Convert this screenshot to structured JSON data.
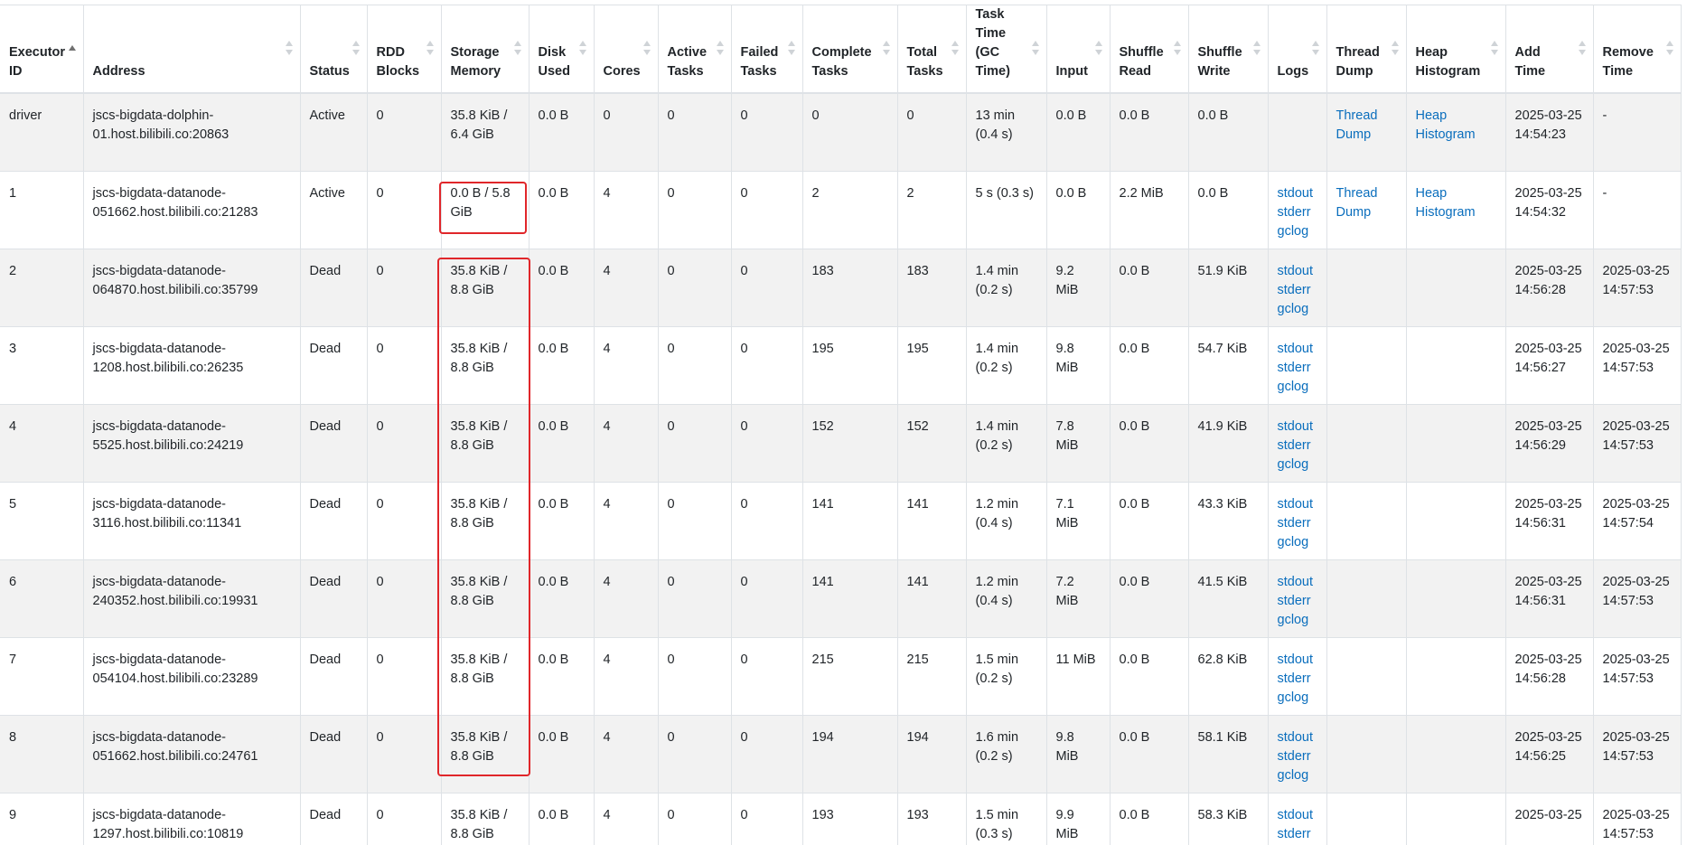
{
  "colors": {
    "link": "#0a6ebd",
    "highlight": "#e0262a",
    "stripe": "#f2f2f2",
    "border": "#dee2e6"
  },
  "columns": [
    "Executor ID",
    "Address",
    "Status",
    "RDD Blocks",
    "Storage Memory",
    "Disk Used",
    "Cores",
    "Active Tasks",
    "Failed Tasks",
    "Complete Tasks",
    "Total Tasks",
    "Task Time (GC Time)",
    "Input",
    "Shuffle Read",
    "Shuffle Write",
    "Logs",
    "Thread Dump",
    "Heap Histogram",
    "Add Time",
    "Remove Time"
  ],
  "rows": [
    {
      "id": "driver",
      "address": "jscs-bigdata-dolphin-01.host.bilibili.co:20863",
      "status": "Active",
      "rdd_blocks": "0",
      "storage_memory": "35.8 KiB / 6.4 GiB",
      "disk_used": "0.0 B",
      "cores": "0",
      "active_tasks": "0",
      "failed_tasks": "0",
      "complete_tasks": "0",
      "total_tasks": "0",
      "task_time": "13 min (0.4 s)",
      "input": "0.0 B",
      "shuffle_read": "0.0 B",
      "shuffle_write": "0.0 B",
      "logs": {
        "stdout": "",
        "stderr": "",
        "gclog": ""
      },
      "thread_dump": "Thread Dump",
      "heap_histogram": "Heap Histogram",
      "add_time": "2025-03-25 14:54:23",
      "remove_time": "-"
    },
    {
      "id": "1",
      "address": "jscs-bigdata-datanode-051662.host.bilibili.co:21283",
      "status": "Active",
      "rdd_blocks": "0",
      "storage_memory": "0.0 B / 5.8 GiB",
      "disk_used": "0.0 B",
      "cores": "4",
      "active_tasks": "0",
      "failed_tasks": "0",
      "complete_tasks": "2",
      "total_tasks": "2",
      "task_time": "5 s (0.3 s)",
      "input": "0.0 B",
      "shuffle_read": "2.2 MiB",
      "shuffle_write": "0.0 B",
      "logs": {
        "stdout": "stdout",
        "stderr": "stderr",
        "gclog": "gclog"
      },
      "thread_dump": "Thread Dump",
      "heap_histogram": "Heap Histogram",
      "add_time": "2025-03-25 14:54:32",
      "remove_time": "-"
    },
    {
      "id": "2",
      "address": "jscs-bigdata-datanode-064870.host.bilibili.co:35799",
      "status": "Dead",
      "rdd_blocks": "0",
      "storage_memory": "35.8 KiB / 8.8 GiB",
      "disk_used": "0.0 B",
      "cores": "4",
      "active_tasks": "0",
      "failed_tasks": "0",
      "complete_tasks": "183",
      "total_tasks": "183",
      "task_time": "1.4 min (0.2 s)",
      "input": "9.2 MiB",
      "shuffle_read": "0.0 B",
      "shuffle_write": "51.9 KiB",
      "logs": {
        "stdout": "stdout",
        "stderr": "stderr",
        "gclog": "gclog"
      },
      "thread_dump": "",
      "heap_histogram": "",
      "add_time": "2025-03-25 14:56:28",
      "remove_time": "2025-03-25 14:57:53"
    },
    {
      "id": "3",
      "address": "jscs-bigdata-datanode-1208.host.bilibili.co:26235",
      "status": "Dead",
      "rdd_blocks": "0",
      "storage_memory": "35.8 KiB / 8.8 GiB",
      "disk_used": "0.0 B",
      "cores": "4",
      "active_tasks": "0",
      "failed_tasks": "0",
      "complete_tasks": "195",
      "total_tasks": "195",
      "task_time": "1.4 min (0.2 s)",
      "input": "9.8 MiB",
      "shuffle_read": "0.0 B",
      "shuffle_write": "54.7 KiB",
      "logs": {
        "stdout": "stdout",
        "stderr": "stderr",
        "gclog": "gclog"
      },
      "thread_dump": "",
      "heap_histogram": "",
      "add_time": "2025-03-25 14:56:27",
      "remove_time": "2025-03-25 14:57:53"
    },
    {
      "id": "4",
      "address": "jscs-bigdata-datanode-5525.host.bilibili.co:24219",
      "status": "Dead",
      "rdd_blocks": "0",
      "storage_memory": "35.8 KiB / 8.8 GiB",
      "disk_used": "0.0 B",
      "cores": "4",
      "active_tasks": "0",
      "failed_tasks": "0",
      "complete_tasks": "152",
      "total_tasks": "152",
      "task_time": "1.4 min (0.2 s)",
      "input": "7.8 MiB",
      "shuffle_read": "0.0 B",
      "shuffle_write": "41.9 KiB",
      "logs": {
        "stdout": "stdout",
        "stderr": "stderr",
        "gclog": "gclog"
      },
      "thread_dump": "",
      "heap_histogram": "",
      "add_time": "2025-03-25 14:56:29",
      "remove_time": "2025-03-25 14:57:53"
    },
    {
      "id": "5",
      "address": "jscs-bigdata-datanode-3116.host.bilibili.co:11341",
      "status": "Dead",
      "rdd_blocks": "0",
      "storage_memory": "35.8 KiB / 8.8 GiB",
      "disk_used": "0.0 B",
      "cores": "4",
      "active_tasks": "0",
      "failed_tasks": "0",
      "complete_tasks": "141",
      "total_tasks": "141",
      "task_time": "1.2 min (0.4 s)",
      "input": "7.1 MiB",
      "shuffle_read": "0.0 B",
      "shuffle_write": "43.3 KiB",
      "logs": {
        "stdout": "stdout",
        "stderr": "stderr",
        "gclog": "gclog"
      },
      "thread_dump": "",
      "heap_histogram": "",
      "add_time": "2025-03-25 14:56:31",
      "remove_time": "2025-03-25 14:57:54"
    },
    {
      "id": "6",
      "address": "jscs-bigdata-datanode-240352.host.bilibili.co:19931",
      "status": "Dead",
      "rdd_blocks": "0",
      "storage_memory": "35.8 KiB / 8.8 GiB",
      "disk_used": "0.0 B",
      "cores": "4",
      "active_tasks": "0",
      "failed_tasks": "0",
      "complete_tasks": "141",
      "total_tasks": "141",
      "task_time": "1.2 min (0.4 s)",
      "input": "7.2 MiB",
      "shuffle_read": "0.0 B",
      "shuffle_write": "41.5 KiB",
      "logs": {
        "stdout": "stdout",
        "stderr": "stderr",
        "gclog": "gclog"
      },
      "thread_dump": "",
      "heap_histogram": "",
      "add_time": "2025-03-25 14:56:31",
      "remove_time": "2025-03-25 14:57:53"
    },
    {
      "id": "7",
      "address": "jscs-bigdata-datanode-054104.host.bilibili.co:23289",
      "status": "Dead",
      "rdd_blocks": "0",
      "storage_memory": "35.8 KiB / 8.8 GiB",
      "disk_used": "0.0 B",
      "cores": "4",
      "active_tasks": "0",
      "failed_tasks": "0",
      "complete_tasks": "215",
      "total_tasks": "215",
      "task_time": "1.5 min (0.2 s)",
      "input": "11 MiB",
      "shuffle_read": "0.0 B",
      "shuffle_write": "62.8 KiB",
      "logs": {
        "stdout": "stdout",
        "stderr": "stderr",
        "gclog": "gclog"
      },
      "thread_dump": "",
      "heap_histogram": "",
      "add_time": "2025-03-25 14:56:28",
      "remove_time": "2025-03-25 14:57:53"
    },
    {
      "id": "8",
      "address": "jscs-bigdata-datanode-051662.host.bilibili.co:24761",
      "status": "Dead",
      "rdd_blocks": "0",
      "storage_memory": "35.8 KiB / 8.8 GiB",
      "disk_used": "0.0 B",
      "cores": "4",
      "active_tasks": "0",
      "failed_tasks": "0",
      "complete_tasks": "194",
      "total_tasks": "194",
      "task_time": "1.6 min (0.2 s)",
      "input": "9.8 MiB",
      "shuffle_read": "0.0 B",
      "shuffle_write": "58.1 KiB",
      "logs": {
        "stdout": "stdout",
        "stderr": "stderr",
        "gclog": "gclog"
      },
      "thread_dump": "",
      "heap_histogram": "",
      "add_time": "2025-03-25 14:56:25",
      "remove_time": "2025-03-25 14:57:53"
    },
    {
      "id": "9",
      "address": "jscs-bigdata-datanode-1297.host.bilibili.co:10819",
      "status": "Dead",
      "rdd_blocks": "0",
      "storage_memory": "35.8 KiB / 8.8 GiB",
      "disk_used": "0.0 B",
      "cores": "4",
      "active_tasks": "0",
      "failed_tasks": "0",
      "complete_tasks": "193",
      "total_tasks": "193",
      "task_time": "1.5 min (0.3 s)",
      "input": "9.9 MiB",
      "shuffle_read": "0.0 B",
      "shuffle_write": "58.3 KiB",
      "logs": {
        "stdout": "stdout",
        "stderr": "stderr",
        "gclog": ""
      },
      "thread_dump": "",
      "heap_histogram": "",
      "add_time": "2025-03-25",
      "remove_time": "2025-03-25 14:57:53"
    }
  ]
}
